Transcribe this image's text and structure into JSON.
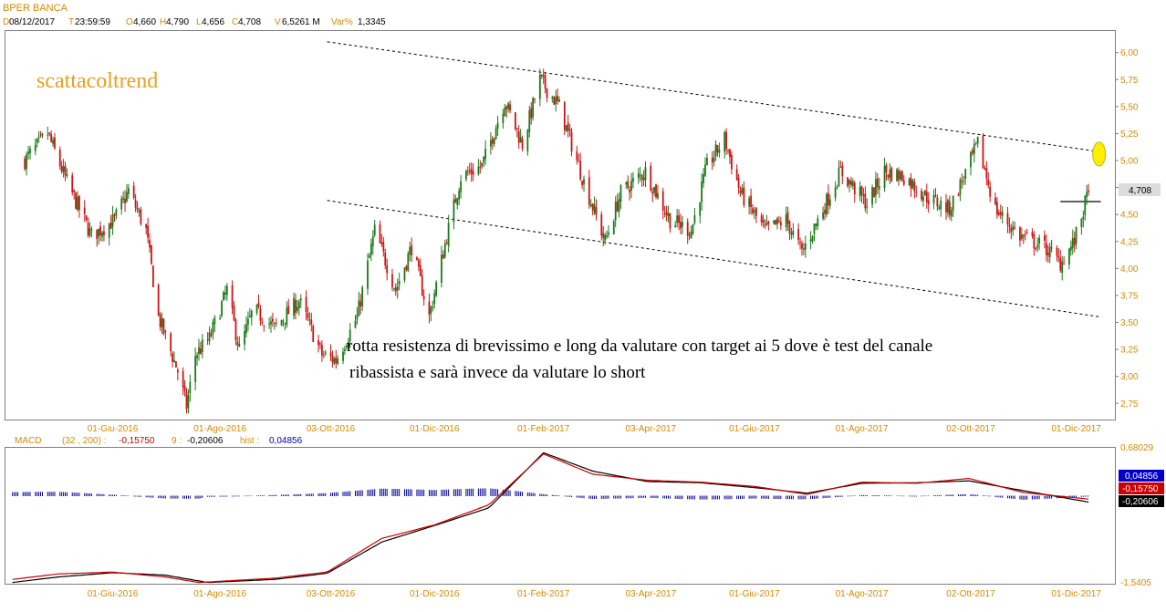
{
  "header": {
    "title": "BPER BANCA",
    "date_key": "D",
    "date": "08/12/2017",
    "time_key": "T",
    "time": "23:59:59",
    "open_key": "O",
    "open": "4,660",
    "high_key": "H",
    "high": "4,790",
    "low_key": "L",
    "low": "4,656",
    "close_key": "C",
    "close": "4,708",
    "volume_key": "V",
    "volume": "6,5261 M",
    "var_key": "Var%",
    "var": "1,3345"
  },
  "watermark": "scattacoltrend",
  "annotation": {
    "line1": "rotta resistenza di brevissimo e long da valutare con target ai 5 dove è test del canale",
    "line2": "ribassista e sarà invece da valutare lo short"
  },
  "price_label": "4,708",
  "macd_header": {
    "name": "MACD",
    "params": "(32 , 200) :",
    "macd_value": "-0,15750",
    "signal_label": "9 :",
    "signal_value": "-0,20606",
    "hist_label": "hist :",
    "hist_value": "0,04856"
  },
  "macd_badges": {
    "hist": "0,04856",
    "macd": "-0,15750",
    "signal": "-0,20606"
  },
  "macd_scale": {
    "top": "0,68029",
    "bottom": "-1,5405"
  },
  "colors": {
    "up": "#1a7a1a",
    "down": "#cc1414",
    "axis_text": "#d68a00",
    "macd_line": "#cc0000",
    "signal_line": "#000000",
    "hist_bars": "#000099",
    "highlight": "#ffee00"
  },
  "chart_data": [
    {
      "type": "candlestick",
      "title": "BPER BANCA",
      "ylim": [
        2.6,
        6.2
      ],
      "y_ticks": [
        "6,00",
        "5,75",
        "5,50",
        "5,25",
        "5,00",
        "4,75",
        "4,50",
        "4,25",
        "4,00",
        "3,75",
        "3,50",
        "3,25",
        "3,00",
        "2,75"
      ],
      "x_ticks": [
        "01-Giu-2016",
        "01-Ago-2016",
        "03-Ott-2016",
        "01-Dic-2016",
        "01-Feb-2017",
        "03-Apr-2017",
        "01-Giu-2017",
        "01-Ago-2017",
        "02-Ott-2017",
        "01-Dic-2017"
      ],
      "close_anchors": [
        [
          "2016-04-12",
          5.0
        ],
        [
          "2016-04-25",
          5.25
        ],
        [
          "2016-05-06",
          4.8
        ],
        [
          "2016-05-20",
          4.3
        ],
        [
          "2016-06-02",
          4.45
        ],
        [
          "2016-06-10",
          4.72
        ],
        [
          "2016-06-20",
          4.35
        ],
        [
          "2016-06-27",
          3.55
        ],
        [
          "2016-07-08",
          3.05
        ],
        [
          "2016-07-13",
          2.72
        ],
        [
          "2016-07-18",
          3.2
        ],
        [
          "2016-07-26",
          3.35
        ],
        [
          "2016-08-05",
          3.8
        ],
        [
          "2016-08-12",
          3.25
        ],
        [
          "2016-08-20",
          3.62
        ],
        [
          "2016-09-01",
          3.45
        ],
        [
          "2016-09-15",
          3.7
        ],
        [
          "2016-09-28",
          3.2
        ],
        [
          "2016-10-06",
          3.15
        ],
        [
          "2016-10-18",
          3.55
        ],
        [
          "2016-10-28",
          4.35
        ],
        [
          "2016-11-09",
          3.8
        ],
        [
          "2016-11-18",
          4.2
        ],
        [
          "2016-11-28",
          3.55
        ],
        [
          "2016-12-08",
          4.3
        ],
        [
          "2016-12-16",
          4.85
        ],
        [
          "2016-12-28",
          4.95
        ],
        [
          "2017-01-10",
          5.55
        ],
        [
          "2017-01-20",
          5.15
        ],
        [
          "2017-01-30",
          5.75
        ],
        [
          "2017-02-10",
          5.5
        ],
        [
          "2017-02-24",
          4.8
        ],
        [
          "2017-03-08",
          4.25
        ],
        [
          "2017-03-17",
          4.7
        ],
        [
          "2017-03-31",
          4.9
        ],
        [
          "2017-04-14",
          4.45
        ],
        [
          "2017-04-26",
          4.35
        ],
        [
          "2017-05-05",
          4.95
        ],
        [
          "2017-05-15",
          5.2
        ],
        [
          "2017-05-24",
          4.7
        ],
        [
          "2017-06-07",
          4.35
        ],
        [
          "2017-06-19",
          4.45
        ],
        [
          "2017-06-28",
          4.15
        ],
        [
          "2017-07-10",
          4.55
        ],
        [
          "2017-07-20",
          4.9
        ],
        [
          "2017-08-04",
          4.6
        ],
        [
          "2017-08-14",
          4.9
        ],
        [
          "2017-08-25",
          4.85
        ],
        [
          "2017-09-08",
          4.65
        ],
        [
          "2017-09-20",
          4.55
        ],
        [
          "2017-10-06",
          5.15
        ],
        [
          "2017-10-16",
          4.55
        ],
        [
          "2017-10-30",
          4.3
        ],
        [
          "2017-11-13",
          4.2
        ],
        [
          "2017-11-22",
          4.05
        ],
        [
          "2017-11-30",
          4.25
        ],
        [
          "2017-12-08",
          4.708
        ]
      ],
      "channel_lines": [
        {
          "name": "upper",
          "from": [
            "2016-10-01",
            6.1
          ],
          "to": [
            "2017-12-15",
            5.08
          ]
        },
        {
          "name": "lower",
          "from": [
            "2016-10-01",
            4.63
          ],
          "to": [
            "2017-12-15",
            3.55
          ]
        }
      ],
      "resistance_line": {
        "from": "2017-11-22",
        "to": "2017-12-15",
        "y": 4.62
      },
      "target_marker": {
        "date": "2017-12-14",
        "y": 5.06
      },
      "last_price": 4.708
    },
    {
      "type": "line",
      "title": "MACD",
      "ylim": [
        -1.5405,
        0.68029
      ],
      "series": [
        {
          "name": "MACD",
          "color": "#cc0000",
          "points": [
            [
              "2016-04-05",
              -1.47
            ],
            [
              "2016-05-01",
              -1.38
            ],
            [
              "2016-06-01",
              -1.35
            ],
            [
              "2016-07-01",
              -1.43
            ],
            [
              "2016-07-20",
              -1.52
            ],
            [
              "2016-09-01",
              -1.45
            ],
            [
              "2016-10-01",
              -1.35
            ],
            [
              "2016-11-01",
              -0.8
            ],
            [
              "2016-12-01",
              -0.58
            ],
            [
              "2017-01-01",
              -0.25
            ],
            [
              "2017-02-01",
              0.58
            ],
            [
              "2017-03-01",
              0.25
            ],
            [
              "2017-04-01",
              0.15
            ],
            [
              "2017-05-01",
              0.12
            ],
            [
              "2017-06-01",
              0.05
            ],
            [
              "2017-07-01",
              -0.08
            ],
            [
              "2017-08-01",
              0.12
            ],
            [
              "2017-09-01",
              0.1
            ],
            [
              "2017-10-01",
              0.18
            ],
            [
              "2017-11-01",
              -0.05
            ],
            [
              "2017-12-08",
              -0.1575
            ]
          ]
        },
        {
          "name": "Signal",
          "color": "#000000",
          "points": [
            [
              "2016-04-05",
              -1.52
            ],
            [
              "2016-05-01",
              -1.43
            ],
            [
              "2016-06-01",
              -1.36
            ],
            [
              "2016-07-01",
              -1.4
            ],
            [
              "2016-07-25",
              -1.52
            ],
            [
              "2016-09-01",
              -1.47
            ],
            [
              "2016-10-01",
              -1.37
            ],
            [
              "2016-11-01",
              -0.86
            ],
            [
              "2016-12-01",
              -0.59
            ],
            [
              "2017-01-01",
              -0.3
            ],
            [
              "2017-02-01",
              0.6
            ],
            [
              "2017-03-01",
              0.3
            ],
            [
              "2017-04-01",
              0.13
            ],
            [
              "2017-05-01",
              0.11
            ],
            [
              "2017-06-01",
              0.03
            ],
            [
              "2017-07-01",
              -0.06
            ],
            [
              "2017-08-01",
              0.1
            ],
            [
              "2017-09-01",
              0.11
            ],
            [
              "2017-10-01",
              0.14
            ],
            [
              "2017-11-01",
              -0.02
            ],
            [
              "2017-12-08",
              -0.20606
            ]
          ]
        }
      ],
      "histogram": {
        "name": "hist",
        "last_value": 0.04856
      }
    }
  ]
}
